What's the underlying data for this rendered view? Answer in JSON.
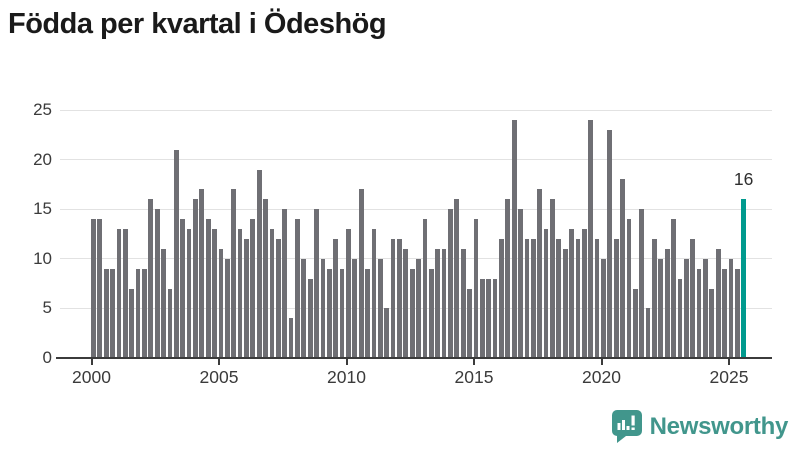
{
  "title": "Födda per kvartal i Ödeshög",
  "chart_data": {
    "type": "bar",
    "title": "Födda per kvartal i Ödeshög",
    "x_start": "2000-Q1",
    "x_end": "2025-Q3",
    "frequency": "quarterly",
    "values": [
      14,
      14,
      9,
      9,
      13,
      13,
      7,
      9,
      9,
      16,
      15,
      11,
      7,
      21,
      14,
      13,
      16,
      17,
      14,
      13,
      11,
      10,
      17,
      13,
      12,
      14,
      19,
      16,
      13,
      12,
      15,
      4,
      14,
      10,
      8,
      15,
      10,
      9,
      12,
      9,
      13,
      10,
      17,
      9,
      13,
      10,
      5,
      12,
      12,
      11,
      9,
      10,
      14,
      9,
      11,
      11,
      15,
      16,
      11,
      7,
      14,
      8,
      8,
      8,
      12,
      16,
      24,
      15,
      12,
      12,
      17,
      13,
      16,
      12,
      11,
      13,
      12,
      13,
      24,
      12,
      10,
      23,
      12,
      18,
      14,
      7,
      15,
      5,
      12,
      10,
      11,
      14,
      8,
      10,
      12,
      9,
      10,
      7,
      11,
      9,
      10,
      9,
      16
    ],
    "highlight_index": 102,
    "annotation": {
      "text": "16"
    },
    "y_axis": {
      "ticks": [
        0,
        5,
        10,
        15,
        20,
        25
      ],
      "range": [
        0,
        25
      ],
      "grid": true
    },
    "x_axis": {
      "ticks": [
        "2000",
        "2005",
        "2010",
        "2015",
        "2020",
        "2025"
      ],
      "tick_start_year": 2000
    },
    "legend": "none",
    "colors": {
      "bar": "#6f6f74",
      "highlight": "#009a8e",
      "grid": "#e2e2e2",
      "axis": "#3b3b3b",
      "label": "#3b3b3b"
    }
  },
  "footer": {
    "brand": "Newsworthy",
    "logo_icon": "speech-bubble-bar-chart-icon",
    "brand_color": "#41968c"
  }
}
